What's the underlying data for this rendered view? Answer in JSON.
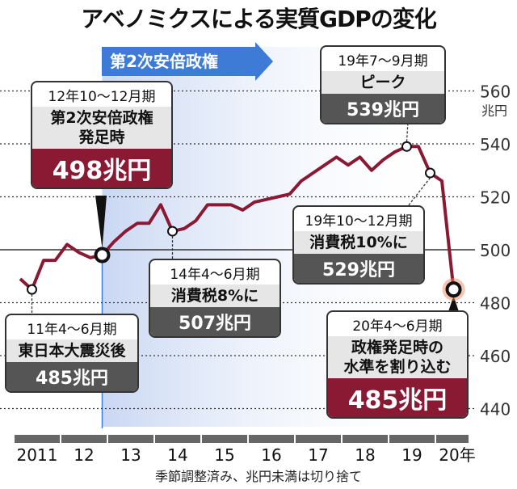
{
  "title": "アベノミクスによる実質GDPの変化",
  "banner": "第2次安倍政権",
  "note": "季節調整済み、兆円未満は切り捨て",
  "colors": {
    "line": "#8a1a34",
    "shade": "#dfe7f7",
    "banner": "#3d7bd6",
    "highlight": "#f08a5d"
  },
  "annotations": {
    "a1": {
      "period": "12年10～12月期",
      "label": "第2次安倍政権\n発足時",
      "value": "498兆円"
    },
    "a2": {
      "period": "19年7～9月期",
      "label": "ピーク",
      "value": "539兆円"
    },
    "a3": {
      "period": "14年4～6月期",
      "label": "消費税8%に",
      "value": "507兆円"
    },
    "a4": {
      "period": "19年10～12月期",
      "label": "消費税10%に",
      "value": "529兆円"
    },
    "a5": {
      "period": "11年4～6月期",
      "label": "東日本大震災後",
      "value": "485兆円"
    },
    "a6": {
      "period": "20年4～6月期",
      "label": "政権発足時の\n水準を割り込む",
      "value": "485兆円"
    }
  },
  "chart_data": {
    "type": "line",
    "title": "アベノミクスによる実質GDPの変化",
    "yunit": "兆円",
    "ylim": [
      430,
      570
    ],
    "yticks": [
      440,
      460,
      480,
      500,
      520,
      540,
      560
    ],
    "xticks": [
      "2011",
      "12",
      "13",
      "14",
      "15",
      "16",
      "17",
      "18",
      "19",
      "20年"
    ],
    "x_start": "2011Q1",
    "frequency": "quarterly",
    "values": [
      489,
      485,
      496,
      496,
      502,
      499,
      497,
      498,
      503,
      507,
      510,
      510,
      517,
      507,
      508,
      511,
      517,
      517,
      517,
      515,
      518,
      519,
      520,
      521,
      526,
      529,
      532,
      535,
      532,
      535,
      530,
      534,
      537,
      539,
      539,
      529,
      526,
      485
    ],
    "marked_points": [
      1,
      7,
      13,
      33,
      35,
      37
    ],
    "shaded_from_index": 7
  }
}
